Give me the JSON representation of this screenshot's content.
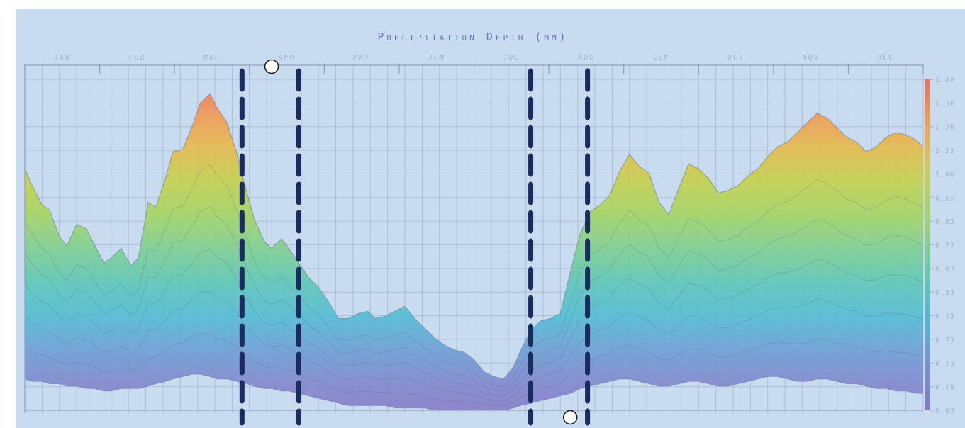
{
  "chart_data": {
    "type": "area",
    "title": "Precipitation Depth (mm)",
    "xlabel": "",
    "ylabel": "",
    "month_labels": [
      "JAN",
      "FEB",
      "MAR",
      "APR",
      "MAY",
      "JUN",
      "JUL",
      "AUG",
      "SEP",
      "OCT",
      "NOV",
      "DEC"
    ],
    "y_tick_labels": [
      "1.40",
      "1.30",
      "1.20",
      "1.12",
      "1.08",
      "0.92",
      "0.82",
      "0.72",
      "0.63",
      "0.53",
      "0.43",
      "0.33",
      "0.23",
      "0.18",
      "0.03"
    ],
    "ylim": [
      0.03,
      1.4
    ],
    "x": [
      1,
      4,
      8,
      11,
      15,
      18,
      22,
      26,
      29,
      33,
      36,
      40,
      44,
      47,
      51,
      54,
      58,
      61,
      65,
      69,
      72,
      76,
      79,
      83,
      87,
      91,
      94,
      98,
      101,
      105,
      108,
      112,
      116,
      120,
      124,
      128,
      132,
      136,
      140,
      143,
      147,
      151,
      155,
      159,
      163,
      167,
      171,
      175,
      179,
      183,
      187,
      191,
      195,
      199,
      202,
      206,
      210,
      214,
      218,
      222,
      226,
      230,
      234,
      238,
      242,
      246,
      250,
      254,
      258,
      262,
      266,
      270,
      274,
      278,
      282,
      286,
      290,
      294,
      298,
      302,
      306,
      310,
      314,
      318,
      322,
      326,
      330,
      334,
      338,
      342,
      346,
      350,
      354,
      358,
      362,
      365
    ],
    "series": [
      {
        "values": [
          1.03,
          0.96,
          0.88,
          0.86,
          0.75,
          0.71,
          0.8,
          0.78,
          0.72,
          0.64,
          0.66,
          0.7,
          0.63,
          0.66,
          0.89,
          0.87,
          0.99,
          1.1,
          1.11,
          1.21,
          1.3,
          1.34,
          1.28,
          1.22,
          1.09,
          0.93,
          0.82,
          0.73,
          0.7,
          0.74,
          0.7,
          0.64,
          0.58,
          0.54,
          0.48,
          0.41,
          0.41,
          0.43,
          0.44,
          0.41,
          0.42,
          0.44,
          0.46,
          0.41,
          0.37,
          0.33,
          0.3,
          0.28,
          0.27,
          0.24,
          0.19,
          0.17,
          0.16,
          0.21,
          0.28,
          0.36,
          0.4,
          0.41,
          0.43,
          0.6,
          0.76,
          0.85,
          0.88,
          0.92,
          1.02,
          1.09,
          1.04,
          1.01,
          0.89,
          0.84,
          0.95,
          1.05,
          1.03,
          0.99,
          0.93,
          0.94,
          0.96,
          1.0,
          1.03,
          1.08,
          1.12,
          1.14,
          1.18,
          1.22,
          1.26,
          1.24,
          1.2,
          1.16,
          1.14,
          1.1,
          1.12,
          1.16,
          1.18,
          1.17,
          1.15,
          1.12
        ]
      },
      {
        "values": [
          0.16,
          0.15,
          0.15,
          0.14,
          0.14,
          0.13,
          0.13,
          0.12,
          0.12,
          0.11,
          0.11,
          0.12,
          0.12,
          0.12,
          0.13,
          0.14,
          0.15,
          0.16,
          0.17,
          0.18,
          0.18,
          0.17,
          0.16,
          0.16,
          0.15,
          0.14,
          0.13,
          0.12,
          0.12,
          0.11,
          0.11,
          0.1,
          0.09,
          0.08,
          0.07,
          0.06,
          0.05,
          0.05,
          0.05,
          0.05,
          0.05,
          0.04,
          0.04,
          0.04,
          0.04,
          0.03,
          0.03,
          0.03,
          0.03,
          0.03,
          0.03,
          0.03,
          0.03,
          0.04,
          0.05,
          0.06,
          0.07,
          0.08,
          0.09,
          0.1,
          0.12,
          0.13,
          0.14,
          0.15,
          0.16,
          0.16,
          0.15,
          0.14,
          0.13,
          0.13,
          0.14,
          0.15,
          0.15,
          0.14,
          0.13,
          0.13,
          0.14,
          0.15,
          0.16,
          0.17,
          0.17,
          0.16,
          0.15,
          0.15,
          0.16,
          0.16,
          0.15,
          0.14,
          0.14,
          0.13,
          0.12,
          0.12,
          0.11,
          0.11,
          0.1,
          0.1
        ]
      }
    ],
    "colorscale": [
      "#8878c8",
      "#7f86cc",
      "#6a9fd4",
      "#4fbcd2",
      "#5cc7b3",
      "#7ecf8d",
      "#a5d45e",
      "#c5d047",
      "#e8b947",
      "#f39550",
      "#f06d62"
    ],
    "marked_ranges": [
      [
        89,
        112
      ],
      [
        206,
        229
      ]
    ],
    "marked_points": [
      {
        "x": 101,
        "y": 1.4
      },
      {
        "x": 222,
        "y": 0.03
      }
    ]
  }
}
